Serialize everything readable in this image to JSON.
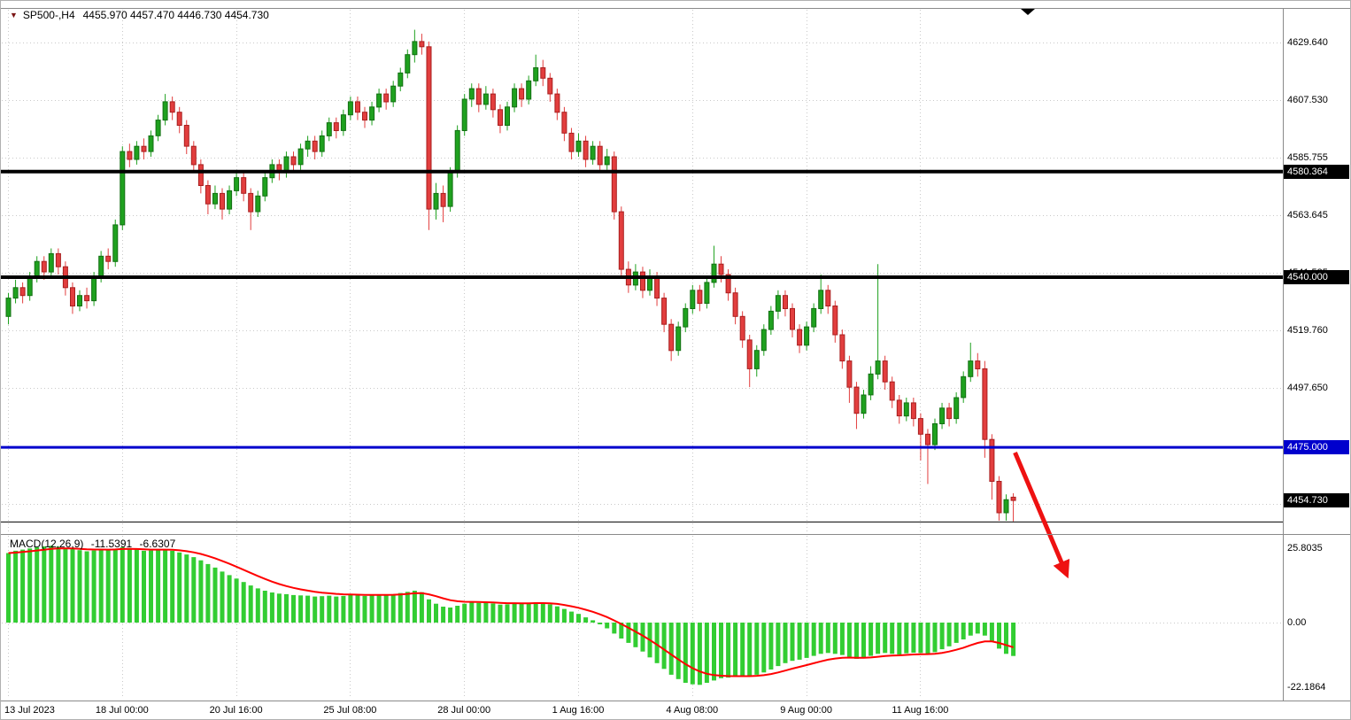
{
  "window": {
    "title": "SP500-,H4",
    "ohlc": "4455.970 4457.470 4446.730 4454.730"
  },
  "chart_data": {
    "type": "candlestick",
    "symbol": "SP500-",
    "timeframe": "H4",
    "current_bar": {
      "open": 4455.97,
      "high": 4457.47,
      "low": 4446.73,
      "close": 4454.73
    },
    "price_axis_labels": [
      {
        "text": "4629.640",
        "price": 4629.64
      },
      {
        "text": "4607.530",
        "price": 4607.53
      },
      {
        "text": "4585.755",
        "price": 4585.755
      },
      {
        "text": "4563.645",
        "price": 4563.645
      },
      {
        "text": "4541.535",
        "price": 4541.535
      },
      {
        "text": "4519.760",
        "price": 4519.76
      },
      {
        "text": "4497.650",
        "price": 4497.65
      }
    ],
    "price_grid": [
      4629.64,
      4607.53,
      4585.755,
      4563.645,
      4541.535,
      4519.76,
      4497.65,
      4475.54,
      4453.43
    ],
    "horizontal_lines": [
      {
        "price": 4580.364,
        "label": "4580.364",
        "color": "#000000",
        "width": 4
      },
      {
        "price": 4540.0,
        "label": "4540.000",
        "color": "#000000",
        "width": 4
      },
      {
        "price": 4475.0,
        "label": "4475.000",
        "color": "#0000cd",
        "width": 3
      },
      {
        "price": 4446.5,
        "label": null,
        "color": "#000000",
        "width": 1
      }
    ],
    "bid_badge": {
      "price": 4454.73,
      "label": "4454.730",
      "color": "#000000"
    },
    "time_axis": [
      {
        "label": "13 Jul 2023",
        "bar": 0
      },
      {
        "label": "18 Jul 00:00",
        "bar": 16
      },
      {
        "label": "20 Jul 16:00",
        "bar": 32
      },
      {
        "label": "25 Jul 08:00",
        "bar": 48
      },
      {
        "label": "28 Jul 00:00",
        "bar": 64
      },
      {
        "label": "1 Aug 16:00",
        "bar": 80
      },
      {
        "label": "4 Aug 08:00",
        "bar": 96
      },
      {
        "label": "9 Aug 00:00",
        "bar": 112
      },
      {
        "label": "11 Aug 16:00",
        "bar": 128
      }
    ],
    "candles": [
      [
        4525,
        4534,
        4522,
        4532
      ],
      [
        4532,
        4539,
        4530,
        4536
      ],
      [
        4536,
        4538,
        4530,
        4533
      ],
      [
        4533,
        4542,
        4531,
        4540
      ],
      [
        4540,
        4548,
        4538,
        4546
      ],
      [
        4546,
        4548,
        4539,
        4542
      ],
      [
        4542,
        4551,
        4540,
        4549
      ],
      [
        4549,
        4551,
        4541,
        4544
      ],
      [
        4544,
        4546,
        4533,
        4536
      ],
      [
        4536,
        4538,
        4526,
        4529
      ],
      [
        4529,
        4535,
        4527,
        4533
      ],
      [
        4533,
        4536,
        4528,
        4531
      ],
      [
        4531,
        4542,
        4529,
        4540
      ],
      [
        4540,
        4550,
        4538,
        4548
      ],
      [
        4548,
        4551,
        4543,
        4546
      ],
      [
        4546,
        4562,
        4544,
        4560
      ],
      [
        4560,
        4590,
        4558,
        4588
      ],
      [
        4588,
        4591,
        4582,
        4585
      ],
      [
        4585,
        4592,
        4583,
        4590
      ],
      [
        4590,
        4593,
        4585,
        4588
      ],
      [
        4588,
        4596,
        4586,
        4594
      ],
      [
        4594,
        4602,
        4592,
        4600
      ],
      [
        4600,
        4610,
        4598,
        4607
      ],
      [
        4607,
        4609,
        4600,
        4603
      ],
      [
        4603,
        4605,
        4595,
        4598
      ],
      [
        4598,
        4600,
        4587,
        4590
      ],
      [
        4590,
        4592,
        4580,
        4583
      ],
      [
        4583,
        4585,
        4572,
        4575
      ],
      [
        4575,
        4577,
        4564,
        4568
      ],
      [
        4568,
        4575,
        4566,
        4572
      ],
      [
        4572,
        4574,
        4562,
        4566
      ],
      [
        4566,
        4575,
        4564,
        4573
      ],
      [
        4573,
        4580,
        4571,
        4578
      ],
      [
        4578,
        4580,
        4569,
        4572
      ],
      [
        4572,
        4574,
        4558,
        4565
      ],
      [
        4565,
        4573,
        4563,
        4571
      ],
      [
        4571,
        4580,
        4569,
        4578
      ],
      [
        4578,
        4585,
        4576,
        4583
      ],
      [
        4583,
        4585,
        4577,
        4580
      ],
      [
        4580,
        4588,
        4578,
        4586
      ],
      [
        4586,
        4588,
        4580,
        4583
      ],
      [
        4583,
        4591,
        4581,
        4589
      ],
      [
        4589,
        4594,
        4586,
        4592
      ],
      [
        4592,
        4594,
        4585,
        4588
      ],
      [
        4588,
        4596,
        4586,
        4594
      ],
      [
        4594,
        4601,
        4592,
        4599
      ],
      [
        4599,
        4601,
        4593,
        4596
      ],
      [
        4596,
        4604,
        4594,
        4602
      ],
      [
        4602,
        4609,
        4600,
        4607
      ],
      [
        4607,
        4609,
        4600,
        4603
      ],
      [
        4603,
        4605,
        4597,
        4600
      ],
      [
        4600,
        4607,
        4598,
        4605
      ],
      [
        4605,
        4612,
        4603,
        4610
      ],
      [
        4610,
        4612,
        4604,
        4607
      ],
      [
        4607,
        4615,
        4605,
        4613
      ],
      [
        4613,
        4620,
        4611,
        4618
      ],
      [
        4618,
        4627,
        4616,
        4625
      ],
      [
        4625,
        4634.5,
        4622,
        4630
      ],
      [
        4630,
        4633,
        4625,
        4628
      ],
      [
        4628,
        4630,
        4558,
        4566
      ],
      [
        4566,
        4576,
        4562,
        4572
      ],
      [
        4572,
        4575,
        4561,
        4567
      ],
      [
        4567,
        4582,
        4565,
        4580
      ],
      [
        4580,
        4598,
        4578,
        4596
      ],
      [
        4596,
        4610,
        4594,
        4608
      ],
      [
        4608,
        4614,
        4605,
        4612
      ],
      [
        4612,
        4614,
        4603,
        4606
      ],
      [
        4606,
        4613,
        4604,
        4610
      ],
      [
        4610,
        4612,
        4601,
        4604
      ],
      [
        4604,
        4606,
        4595,
        4598
      ],
      [
        4598,
        4607,
        4596,
        4605
      ],
      [
        4605,
        4614,
        4603,
        4612
      ],
      [
        4612,
        4614,
        4605,
        4608
      ],
      [
        4608,
        4617,
        4606,
        4615
      ],
      [
        4615,
        4625,
        4613,
        4620
      ],
      [
        4620,
        4623,
        4613,
        4616
      ],
      [
        4616,
        4618,
        4607,
        4610
      ],
      [
        4610,
        4612,
        4600,
        4603
      ],
      [
        4603,
        4605,
        4592,
        4595
      ],
      [
        4595,
        4597,
        4585,
        4588
      ],
      [
        4588,
        4595,
        4586,
        4592
      ],
      [
        4592,
        4594,
        4582,
        4585
      ],
      [
        4585,
        4592,
        4583,
        4590
      ],
      [
        4590,
        4592,
        4580,
        4583
      ],
      [
        4583,
        4589,
        4581,
        4586
      ],
      [
        4586,
        4588,
        4562,
        4565
      ],
      [
        4565,
        4567,
        4540,
        4543
      ],
      [
        4543,
        4546,
        4534,
        4537
      ],
      [
        4537,
        4545,
        4535,
        4542
      ],
      [
        4542,
        4544,
        4532,
        4535
      ],
      [
        4535,
        4543,
        4533,
        4540
      ],
      [
        4540,
        4542,
        4529,
        4532
      ],
      [
        4532,
        4534,
        4519,
        4522
      ],
      [
        4522,
        4524,
        4508,
        4512
      ],
      [
        4512,
        4523,
        4510,
        4521
      ],
      [
        4521,
        4530,
        4519,
        4528
      ],
      [
        4528,
        4537,
        4526,
        4535
      ],
      [
        4535,
        4537,
        4527,
        4530
      ],
      [
        4530,
        4540,
        4528,
        4538
      ],
      [
        4538,
        4552,
        4536,
        4545
      ],
      [
        4545,
        4548,
        4538,
        4541
      ],
      [
        4541,
        4543,
        4531,
        4534
      ],
      [
        4534,
        4536,
        4522,
        4525
      ],
      [
        4525,
        4527,
        4513,
        4516
      ],
      [
        4516,
        4518,
        4498,
        4505
      ],
      [
        4505,
        4514,
        4502,
        4512
      ],
      [
        4512,
        4522,
        4510,
        4520
      ],
      [
        4520,
        4529,
        4518,
        4527
      ],
      [
        4527,
        4535,
        4524,
        4533
      ],
      [
        4533,
        4535,
        4525,
        4528
      ],
      [
        4528,
        4530,
        4517,
        4520
      ],
      [
        4520,
        4522,
        4511,
        4514
      ],
      [
        4514,
        4523,
        4512,
        4521
      ],
      [
        4521,
        4530,
        4519,
        4528
      ],
      [
        4528,
        4541,
        4526,
        4535
      ],
      [
        4535,
        4537,
        4526,
        4529
      ],
      [
        4529,
        4531,
        4515,
        4518
      ],
      [
        4518,
        4520,
        4505,
        4508
      ],
      [
        4508,
        4510,
        4492,
        4498
      ],
      [
        4498,
        4500,
        4482,
        4488
      ],
      [
        4488,
        4497,
        4486,
        4495
      ],
      [
        4495,
        4506,
        4493,
        4503
      ],
      [
        4503,
        4545,
        4501,
        4508
      ],
      [
        4508,
        4510,
        4497,
        4500
      ],
      [
        4500,
        4502,
        4490,
        4493
      ],
      [
        4493,
        4495,
        4484,
        4487
      ],
      [
        4487,
        4494,
        4485,
        4492
      ],
      [
        4492,
        4494,
        4483,
        4486
      ],
      [
        4486,
        4488,
        4470,
        4480
      ],
      [
        4480,
        4482,
        4461,
        4476
      ],
      [
        4476,
        4486,
        4474,
        4484
      ],
      [
        4484,
        4492,
        4482,
        4490
      ],
      [
        4490,
        4492,
        4483,
        4486
      ],
      [
        4486,
        4496,
        4484,
        4494
      ],
      [
        4494,
        4504,
        4492,
        4502
      ],
      [
        4502,
        4515,
        4500,
        4508
      ],
      [
        4508,
        4511,
        4502,
        4505
      ],
      [
        4505,
        4508,
        4471,
        4478
      ],
      [
        4478,
        4480,
        4455,
        4462
      ],
      [
        4462,
        4464,
        4447,
        4450
      ],
      [
        4450,
        4457,
        4447,
        4455
      ],
      [
        4455.97,
        4457.47,
        4446.73,
        4454.73
      ]
    ],
    "macd": {
      "label": "MACD(12,26,9)",
      "value_main": "-11.5391",
      "value_signal": "-6.6307",
      "signal_period": 9,
      "scale_labels": [
        {
          "text": "25.8035",
          "value": 25.8035
        },
        {
          "text": "0.00",
          "value": 0
        },
        {
          "text": "-22.1864",
          "value": -22.1864
        }
      ],
      "histogram": [
        24,
        24.8,
        25.2,
        25.6,
        26,
        26.3,
        26.5,
        26.2,
        25.8,
        25.4,
        25,
        24.6,
        24.9,
        25.3,
        25,
        25.5,
        26,
        25.6,
        25.2,
        24.8,
        24.9,
        25.1,
        25.3,
        24.8,
        24.2,
        23.5,
        22.6,
        21.5,
        20.2,
        19,
        17.6,
        16.4,
        15.2,
        14,
        12.8,
        11.8,
        11,
        10.4,
        10,
        9.8,
        9.5,
        9.4,
        9.3,
        9,
        9.1,
        9.3,
        9,
        9.2,
        9.5,
        9.4,
        9.2,
        9.4,
        9.7,
        9.5,
        9.8,
        10.2,
        10.6,
        11,
        10.5,
        8,
        6.5,
        5.5,
        5.2,
        5.8,
        6.5,
        7,
        6.8,
        6.9,
        6.6,
        6.2,
        6.3,
        6.6,
        6.5,
        6.7,
        7,
        6.8,
        6.3,
        5.6,
        4.7,
        3.8,
        3,
        1.8,
        0.8,
        -0.6,
        -2,
        -3.8,
        -5.5,
        -7,
        -8.5,
        -10,
        -12,
        -14,
        -16,
        -18,
        -19.5,
        -20.8,
        -21.3,
        -21.5,
        -20.8,
        -20,
        -19.2,
        -19,
        -18.6,
        -18.4,
        -18.5,
        -18,
        -17.2,
        -16.2,
        -15,
        -14,
        -13.2,
        -12.8,
        -12.2,
        -11.5,
        -10.8,
        -10.5,
        -10.8,
        -11.2,
        -11.8,
        -12.5,
        -12.2,
        -11.5,
        -10.8,
        -10.5,
        -10.8,
        -11,
        -10.6,
        -10.4,
        -10.5,
        -10.8,
        -10.2,
        -9.2,
        -8.2,
        -7,
        -5.8,
        -4.5,
        -3.8,
        -4.5,
        -6.5,
        -9,
        -10.8,
        -11.5391
      ],
      "histogram_color": "#32cd32",
      "signal_color": "#ff0000"
    },
    "arrow": {
      "from": {
        "bar": 141.3,
        "price": 4473
      },
      "to": {
        "bar": 148.3,
        "price": 4428
      },
      "color": "#ee1111"
    },
    "colors": {
      "bull": "#1fa11f",
      "bull_border": "#127012",
      "bear": "#e23e3e",
      "bear_border": "#a81f1f",
      "grid": "#c9c9c9"
    }
  }
}
